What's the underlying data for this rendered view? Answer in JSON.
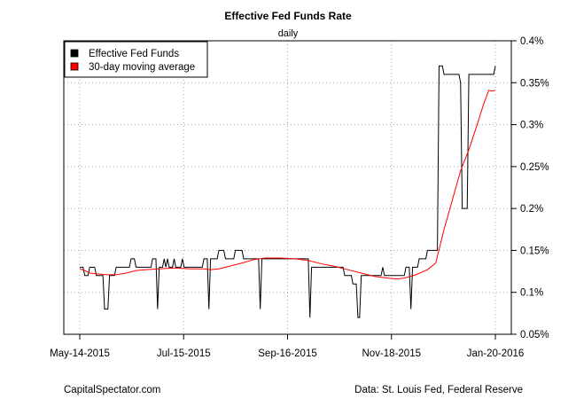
{
  "chart_data": {
    "type": "line",
    "title": "Effective Fed Funds Rate",
    "subtitle": "daily",
    "xlabel": "",
    "ylabel": "",
    "x_ticks": [
      "May-14-2015",
      "Jul-15-2015",
      "Sep-16-2015",
      "Nov-18-2015",
      "Jan-20-2016"
    ],
    "y_ticks": [
      "0.4%",
      "0.35%",
      "0.3%",
      "0.25%",
      "0.2%",
      "0.15%",
      "0.1%",
      "0.05%"
    ],
    "y_tick_values": [
      0.4,
      0.35,
      0.3,
      0.25,
      0.2,
      0.15,
      0.1,
      0.05
    ],
    "xlim": [
      "2015-05-14",
      "2016-01-20"
    ],
    "ylim": [
      0.05,
      0.4
    ],
    "y_axis_side": "right",
    "grid": true,
    "legend_position": "top-left",
    "series": [
      {
        "name": "Effective Fed Funds",
        "color": "#000000",
        "points": [
          [
            "2015-05-14",
            0.13
          ],
          [
            "2015-05-16",
            0.13
          ],
          [
            "2015-05-17",
            0.12
          ],
          [
            "2015-05-19",
            0.12
          ],
          [
            "2015-05-20",
            0.13
          ],
          [
            "2015-05-23",
            0.13
          ],
          [
            "2015-05-24",
            0.12
          ],
          [
            "2015-05-28",
            0.12
          ],
          [
            "2015-05-29",
            0.08
          ],
          [
            "2015-05-31",
            0.08
          ],
          [
            "2015-06-01",
            0.12
          ],
          [
            "2015-06-04",
            0.12
          ],
          [
            "2015-06-05",
            0.13
          ],
          [
            "2015-06-13",
            0.13
          ],
          [
            "2015-06-14",
            0.14
          ],
          [
            "2015-06-16",
            0.14
          ],
          [
            "2015-06-17",
            0.13
          ],
          [
            "2015-06-26",
            0.13
          ],
          [
            "2015-06-27",
            0.14
          ],
          [
            "2015-06-29",
            0.14
          ],
          [
            "2015-06-30",
            0.08
          ],
          [
            "2015-07-01",
            0.13
          ],
          [
            "2015-07-03",
            0.13
          ],
          [
            "2015-07-04",
            0.14
          ],
          [
            "2015-07-05",
            0.13
          ],
          [
            "2015-07-06",
            0.14
          ],
          [
            "2015-07-07",
            0.13
          ],
          [
            "2015-07-09",
            0.13
          ],
          [
            "2015-07-10",
            0.14
          ],
          [
            "2015-07-11",
            0.13
          ],
          [
            "2015-07-14",
            0.13
          ],
          [
            "2015-07-15",
            0.14
          ],
          [
            "2015-07-16",
            0.13
          ],
          [
            "2015-07-27",
            0.13
          ],
          [
            "2015-07-28",
            0.14
          ],
          [
            "2015-07-30",
            0.14
          ],
          [
            "2015-07-31",
            0.08
          ],
          [
            "2015-08-01",
            0.14
          ],
          [
            "2015-08-05",
            0.14
          ],
          [
            "2015-08-06",
            0.15
          ],
          [
            "2015-08-09",
            0.15
          ],
          [
            "2015-08-10",
            0.14
          ],
          [
            "2015-08-15",
            0.14
          ],
          [
            "2015-08-16",
            0.15
          ],
          [
            "2015-08-20",
            0.15
          ],
          [
            "2015-08-21",
            0.14
          ],
          [
            "2015-08-30",
            0.14
          ],
          [
            "2015-08-31",
            0.08
          ],
          [
            "2015-09-01",
            0.14
          ],
          [
            "2015-09-29",
            0.14
          ],
          [
            "2015-09-30",
            0.07
          ],
          [
            "2015-10-01",
            0.13
          ],
          [
            "2015-10-20",
            0.13
          ],
          [
            "2015-10-21",
            0.12
          ],
          [
            "2015-10-25",
            0.12
          ],
          [
            "2015-10-26",
            0.11
          ],
          [
            "2015-10-28",
            0.11
          ],
          [
            "2015-10-29",
            0.07
          ],
          [
            "2015-10-30",
            0.07
          ],
          [
            "2015-10-31",
            0.12
          ],
          [
            "2015-11-12",
            0.12
          ],
          [
            "2015-11-13",
            0.13
          ],
          [
            "2015-11-14",
            0.12
          ],
          [
            "2015-11-26",
            0.12
          ],
          [
            "2015-11-27",
            0.13
          ],
          [
            "2015-11-29",
            0.13
          ],
          [
            "2015-11-30",
            0.08
          ],
          [
            "2015-12-01",
            0.13
          ],
          [
            "2015-12-04",
            0.13
          ],
          [
            "2015-12-05",
            0.14
          ],
          [
            "2015-12-09",
            0.14
          ],
          [
            "2015-12-10",
            0.15
          ],
          [
            "2015-12-16",
            0.15
          ],
          [
            "2015-12-17",
            0.37
          ],
          [
            "2015-12-19",
            0.37
          ],
          [
            "2015-12-20",
            0.36
          ],
          [
            "2015-12-29",
            0.36
          ],
          [
            "2015-12-30",
            0.35
          ],
          [
            "2015-12-31",
            0.2
          ],
          [
            "2016-01-03",
            0.2
          ],
          [
            "2016-01-04",
            0.36
          ],
          [
            "2016-01-19",
            0.36
          ],
          [
            "2016-01-20",
            0.37
          ]
        ]
      },
      {
        "name": "30-day moving average",
        "color": "#ff0000",
        "points": [
          [
            "2015-05-14",
            0.128
          ],
          [
            "2015-05-17",
            0.126
          ],
          [
            "2015-05-20",
            0.123
          ],
          [
            "2015-05-25",
            0.122
          ],
          [
            "2015-05-30",
            0.121
          ],
          [
            "2015-06-05",
            0.121
          ],
          [
            "2015-06-11",
            0.123
          ],
          [
            "2015-06-17",
            0.126
          ],
          [
            "2015-06-23",
            0.127
          ],
          [
            "2015-07-01",
            0.128
          ],
          [
            "2015-07-10",
            0.129
          ],
          [
            "2015-07-20",
            0.128
          ],
          [
            "2015-07-28",
            0.128
          ],
          [
            "2015-08-01",
            0.127
          ],
          [
            "2015-08-06",
            0.128
          ],
          [
            "2015-08-12",
            0.131
          ],
          [
            "2015-08-20",
            0.135
          ],
          [
            "2015-08-27",
            0.139
          ],
          [
            "2015-09-03",
            0.141
          ],
          [
            "2015-09-12",
            0.141
          ],
          [
            "2015-09-21",
            0.14
          ],
          [
            "2015-09-29",
            0.138
          ],
          [
            "2015-10-07",
            0.134
          ],
          [
            "2015-10-15",
            0.131
          ],
          [
            "2015-10-23",
            0.127
          ],
          [
            "2015-10-31",
            0.123
          ],
          [
            "2015-11-08",
            0.119
          ],
          [
            "2015-11-16",
            0.117
          ],
          [
            "2015-11-22",
            0.116
          ],
          [
            "2015-11-26",
            0.117
          ],
          [
            "2015-12-03",
            0.121
          ],
          [
            "2015-12-10",
            0.127
          ],
          [
            "2015-12-15",
            0.135
          ],
          [
            "2015-12-20",
            0.175
          ],
          [
            "2015-12-25",
            0.21
          ],
          [
            "2015-12-30",
            0.245
          ],
          [
            "2016-01-04",
            0.27
          ],
          [
            "2016-01-09",
            0.3
          ],
          [
            "2016-01-13",
            0.325
          ],
          [
            "2016-01-16",
            0.341
          ],
          [
            "2016-01-18",
            0.34
          ],
          [
            "2016-01-20",
            0.341
          ]
        ]
      }
    ]
  },
  "footer": {
    "left": "CapitalSpectator.com",
    "right": "Data: St. Louis Fed, Federal Reserve"
  }
}
